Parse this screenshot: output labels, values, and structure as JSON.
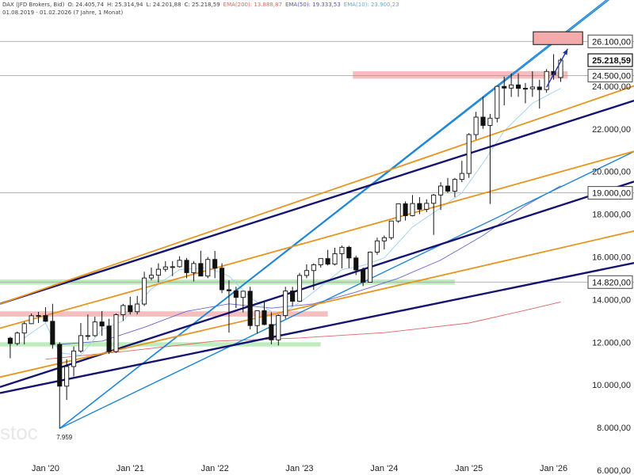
{
  "header": {
    "line1": {
      "instrument": "DAX (JFD Brokers, Bid)",
      "open": "O: 24.405,74",
      "high": "H: 25.314,94",
      "low": "L: 24.201,88",
      "close": "C: 25.218,59",
      "ema200": "EMA(200): 13.888,87",
      "ema50": "EMA(50): 19.333,53",
      "ema10": "EMA(10): 23.900,23"
    },
    "line2": "01.08.2019 - 01.02.2026 (7 Jahre, 1 Monat)"
  },
  "watermark": "stoc",
  "colors": {
    "candle": "#111111",
    "blue_lines": "#1f86d6",
    "navy_lines": "#141470",
    "orange_lines": "#e8941f",
    "green_zone": "#a8e6a8",
    "red_zone": "#f2aaaa",
    "ema200": "#e06666",
    "ema50": "#6666cc",
    "ema10": "#9ecff0",
    "arrow": "#2233aa"
  },
  "chart_data": {
    "type": "candlestick",
    "title": "DAX (JFD Brokers, Bid)",
    "x_ticks": [
      "Jan '20",
      "Jan '21",
      "Jan '22",
      "Jan '23",
      "Jan '24",
      "Jan '25",
      "Jan '26"
    ],
    "y_ticks": [
      "6.000,00",
      "8.000,00",
      "10.000,00",
      "12.000,00",
      "14.000,00",
      "16.000,00",
      "18.000,00",
      "20.000,00",
      "22.000,00",
      "24.000,00"
    ],
    "ylim": [
      6000,
      27000
    ],
    "xlim": [
      "2019-07",
      "2026-07"
    ],
    "marked_levels": [
      {
        "value": 26100,
        "label": "26.100,00"
      },
      {
        "value": 24500,
        "label": "24.500,00"
      },
      {
        "value": 19000,
        "label": "19.000,00"
      },
      {
        "value": 14820,
        "label": "14.820,00"
      }
    ],
    "last_price": {
      "value": 25218.59,
      "label": "25.218,59"
    },
    "low_annotation": {
      "date": "2020-03",
      "value": 7959,
      "label": "7.959"
    },
    "candles": [
      {
        "t": "2019-08",
        "o": 12190,
        "h": 12250,
        "l": 11250,
        "c": 11940
      },
      {
        "t": "2019-09",
        "o": 11940,
        "h": 12500,
        "l": 11850,
        "c": 12430
      },
      {
        "t": "2019-10",
        "o": 12430,
        "h": 12950,
        "l": 11900,
        "c": 12870
      },
      {
        "t": "2019-11",
        "o": 12870,
        "h": 13350,
        "l": 12850,
        "c": 13240
      },
      {
        "t": "2019-12",
        "o": 13240,
        "h": 13420,
        "l": 12900,
        "c": 13250
      },
      {
        "t": "2020-01",
        "o": 13250,
        "h": 13640,
        "l": 12950,
        "c": 12980
      },
      {
        "t": "2020-02",
        "o": 12980,
        "h": 13800,
        "l": 11700,
        "c": 11900
      },
      {
        "t": "2020-03",
        "o": 11900,
        "h": 12000,
        "l": 7959,
        "c": 9940
      },
      {
        "t": "2020-04",
        "o": 9940,
        "h": 11200,
        "l": 9300,
        "c": 10860
      },
      {
        "t": "2020-05",
        "o": 10860,
        "h": 11800,
        "l": 10400,
        "c": 11590
      },
      {
        "t": "2020-06",
        "o": 11590,
        "h": 12900,
        "l": 11500,
        "c": 12310
      },
      {
        "t": "2020-07",
        "o": 12310,
        "h": 13300,
        "l": 12100,
        "c": 12310
      },
      {
        "t": "2020-08",
        "o": 12310,
        "h": 13200,
        "l": 12250,
        "c": 12950
      },
      {
        "t": "2020-09",
        "o": 12950,
        "h": 13460,
        "l": 12300,
        "c": 12760
      },
      {
        "t": "2020-10",
        "o": 12760,
        "h": 13100,
        "l": 11450,
        "c": 11560
      },
      {
        "t": "2020-11",
        "o": 11560,
        "h": 13350,
        "l": 11500,
        "c": 13290
      },
      {
        "t": "2020-12",
        "o": 13290,
        "h": 13800,
        "l": 13000,
        "c": 13720
      },
      {
        "t": "2021-01",
        "o": 13720,
        "h": 14130,
        "l": 13300,
        "c": 13430
      },
      {
        "t": "2021-02",
        "o": 13430,
        "h": 14170,
        "l": 13300,
        "c": 13790
      },
      {
        "t": "2021-03",
        "o": 13790,
        "h": 15300,
        "l": 13700,
        "c": 15010
      },
      {
        "t": "2021-04",
        "o": 15010,
        "h": 15500,
        "l": 14900,
        "c": 15140
      },
      {
        "t": "2021-05",
        "o": 15140,
        "h": 15700,
        "l": 14800,
        "c": 15420
      },
      {
        "t": "2021-06",
        "o": 15420,
        "h": 15800,
        "l": 15300,
        "c": 15530
      },
      {
        "t": "2021-07",
        "o": 15530,
        "h": 15800,
        "l": 15100,
        "c": 15540
      },
      {
        "t": "2021-08",
        "o": 15540,
        "h": 16030,
        "l": 15500,
        "c": 15840
      },
      {
        "t": "2021-09",
        "o": 15840,
        "h": 15950,
        "l": 15000,
        "c": 15260
      },
      {
        "t": "2021-10",
        "o": 15260,
        "h": 15800,
        "l": 14850,
        "c": 15690
      },
      {
        "t": "2021-11",
        "o": 15690,
        "h": 16290,
        "l": 15100,
        "c": 15100
      },
      {
        "t": "2021-12",
        "o": 15100,
        "h": 16000,
        "l": 15000,
        "c": 15880
      },
      {
        "t": "2022-01",
        "o": 15880,
        "h": 16280,
        "l": 15000,
        "c": 15470
      },
      {
        "t": "2022-02",
        "o": 15470,
        "h": 15700,
        "l": 14300,
        "c": 14460
      },
      {
        "t": "2022-03",
        "o": 14460,
        "h": 14900,
        "l": 12450,
        "c": 14410
      },
      {
        "t": "2022-04",
        "o": 14410,
        "h": 14600,
        "l": 13600,
        "c": 14100
      },
      {
        "t": "2022-05",
        "o": 14100,
        "h": 14400,
        "l": 13400,
        "c": 14390
      },
      {
        "t": "2022-06",
        "o": 14390,
        "h": 14600,
        "l": 12600,
        "c": 12780
      },
      {
        "t": "2022-07",
        "o": 12780,
        "h": 13400,
        "l": 12400,
        "c": 13480
      },
      {
        "t": "2022-08",
        "o": 13480,
        "h": 13900,
        "l": 12800,
        "c": 12830
      },
      {
        "t": "2022-09",
        "o": 12830,
        "h": 13400,
        "l": 11900,
        "c": 12110
      },
      {
        "t": "2022-10",
        "o": 12110,
        "h": 13300,
        "l": 11850,
        "c": 13250
      },
      {
        "t": "2022-11",
        "o": 13250,
        "h": 14600,
        "l": 13100,
        "c": 14400
      },
      {
        "t": "2022-12",
        "o": 14400,
        "h": 14600,
        "l": 13700,
        "c": 13920
      },
      {
        "t": "2023-01",
        "o": 13920,
        "h": 15250,
        "l": 13900,
        "c": 15130
      },
      {
        "t": "2023-02",
        "o": 15130,
        "h": 15650,
        "l": 15000,
        "c": 15360
      },
      {
        "t": "2023-03",
        "o": 15360,
        "h": 15700,
        "l": 14450,
        "c": 15630
      },
      {
        "t": "2023-04",
        "o": 15630,
        "h": 15900,
        "l": 15500,
        "c": 15920
      },
      {
        "t": "2023-05",
        "o": 15920,
        "h": 16330,
        "l": 15600,
        "c": 15660
      },
      {
        "t": "2023-06",
        "o": 15660,
        "h": 16430,
        "l": 15600,
        "c": 16150
      },
      {
        "t": "2023-07",
        "o": 16150,
        "h": 16530,
        "l": 15460,
        "c": 16450
      },
      {
        "t": "2023-08",
        "o": 16450,
        "h": 16520,
        "l": 15470,
        "c": 15950
      },
      {
        "t": "2023-09",
        "o": 15950,
        "h": 16050,
        "l": 15150,
        "c": 15390
      },
      {
        "t": "2023-10",
        "o": 15390,
        "h": 15500,
        "l": 14630,
        "c": 14810
      },
      {
        "t": "2023-11",
        "o": 14810,
        "h": 16250,
        "l": 14800,
        "c": 16220
      },
      {
        "t": "2023-12",
        "o": 16220,
        "h": 16900,
        "l": 16100,
        "c": 16750
      },
      {
        "t": "2024-01",
        "o": 16750,
        "h": 17000,
        "l": 16350,
        "c": 16900
      },
      {
        "t": "2024-02",
        "o": 16900,
        "h": 17500,
        "l": 16800,
        "c": 17680
      },
      {
        "t": "2024-03",
        "o": 17680,
        "h": 18500,
        "l": 17600,
        "c": 18490
      },
      {
        "t": "2024-04",
        "o": 18490,
        "h": 18600,
        "l": 17700,
        "c": 17930
      },
      {
        "t": "2024-05",
        "o": 17930,
        "h": 18900,
        "l": 17900,
        "c": 18500
      },
      {
        "t": "2024-06",
        "o": 18500,
        "h": 18800,
        "l": 18000,
        "c": 18230
      },
      {
        "t": "2024-07",
        "o": 18230,
        "h": 18700,
        "l": 18100,
        "c": 18510
      },
      {
        "t": "2024-08",
        "o": 18510,
        "h": 18950,
        "l": 17030,
        "c": 18900
      },
      {
        "t": "2024-09",
        "o": 18900,
        "h": 19500,
        "l": 18200,
        "c": 19320
      },
      {
        "t": "2024-10",
        "o": 19320,
        "h": 19700,
        "l": 19000,
        "c": 19080
      },
      {
        "t": "2024-11",
        "o": 19080,
        "h": 19700,
        "l": 18800,
        "c": 19630
      },
      {
        "t": "2024-12",
        "o": 19630,
        "h": 20500,
        "l": 19500,
        "c": 19910
      },
      {
        "t": "2025-01",
        "o": 19910,
        "h": 21800,
        "l": 19700,
        "c": 21730
      },
      {
        "t": "2025-02",
        "o": 21730,
        "h": 22800,
        "l": 21500,
        "c": 22550
      },
      {
        "t": "2025-03",
        "o": 22550,
        "h": 23500,
        "l": 22000,
        "c": 22160
      },
      {
        "t": "2025-04",
        "o": 22160,
        "h": 22700,
        "l": 18480,
        "c": 22500
      },
      {
        "t": "2025-05",
        "o": 22500,
        "h": 24000,
        "l": 22300,
        "c": 23990
      },
      {
        "t": "2025-06",
        "o": 23990,
        "h": 24450,
        "l": 23100,
        "c": 23910
      },
      {
        "t": "2025-07",
        "o": 23910,
        "h": 24600,
        "l": 23500,
        "c": 24060
      },
      {
        "t": "2025-08",
        "o": 24060,
        "h": 24600,
        "l": 23500,
        "c": 23900
      },
      {
        "t": "2025-09",
        "o": 23900,
        "h": 24150,
        "l": 23200,
        "c": 23880
      },
      {
        "t": "2025-10",
        "o": 23880,
        "h": 24700,
        "l": 23500,
        "c": 23960
      },
      {
        "t": "2025-11",
        "o": 23960,
        "h": 24300,
        "l": 22950,
        "c": 23840
      },
      {
        "t": "2025-12",
        "o": 23840,
        "h": 24800,
        "l": 23700,
        "c": 24690
      },
      {
        "t": "2026-01",
        "o": 24690,
        "h": 25500,
        "l": 24300,
        "c": 24540
      },
      {
        "t": "2026-02",
        "o": 24405.74,
        "h": 25314.94,
        "l": 24201.88,
        "c": 25218.59
      }
    ],
    "ema10": [
      [
        "2019-10",
        12200
      ],
      [
        "2020-01",
        12900
      ],
      [
        "2020-03",
        11500
      ],
      [
        "2020-06",
        11400
      ],
      [
        "2020-09",
        12600
      ],
      [
        "2020-12",
        13000
      ],
      [
        "2021-04",
        14500
      ],
      [
        "2021-08",
        15400
      ],
      [
        "2021-12",
        15500
      ],
      [
        "2022-03",
        15100
      ],
      [
        "2022-06",
        14100
      ],
      [
        "2022-10",
        13200
      ],
      [
        "2023-02",
        14100
      ],
      [
        "2023-07",
        15400
      ],
      [
        "2023-10",
        15600
      ],
      [
        "2024-01",
        15950
      ],
      [
        "2024-05",
        17400
      ],
      [
        "2024-09",
        18300
      ],
      [
        "2024-12",
        19000
      ],
      [
        "2025-03",
        20400
      ],
      [
        "2025-06",
        21900
      ],
      [
        "2025-10",
        23200
      ],
      [
        "2026-02",
        23900
      ]
    ],
    "ema50": [
      [
        "2020-03",
        11900
      ],
      [
        "2020-09",
        12050
      ],
      [
        "2021-03",
        12700
      ],
      [
        "2021-09",
        13450
      ],
      [
        "2022-03",
        13800
      ],
      [
        "2022-09",
        13600
      ],
      [
        "2023-03",
        13800
      ],
      [
        "2023-09",
        14350
      ],
      [
        "2024-03",
        15000
      ],
      [
        "2024-09",
        15850
      ],
      [
        "2025-03",
        17000
      ],
      [
        "2025-09",
        18400
      ],
      [
        "2026-02",
        19333.53
      ]
    ],
    "ema200": [
      [
        "2020-01",
        11200
      ],
      [
        "2021-01",
        11600
      ],
      [
        "2022-01",
        12050
      ],
      [
        "2023-01",
        12200
      ],
      [
        "2024-01",
        12450
      ],
      [
        "2025-01",
        12900
      ],
      [
        "2025-09",
        13500
      ],
      [
        "2026-02",
        13888.87
      ]
    ],
    "zones": [
      {
        "color": "green",
        "from": "2019-07",
        "to": "2024-11",
        "low": 14700,
        "high": 14940
      },
      {
        "color": "green",
        "from": "2019-07",
        "to": "2023-04",
        "low": 11800,
        "high": 12000
      },
      {
        "color": "red",
        "from": "2019-07",
        "to": "2023-05",
        "low": 13200,
        "high": 13450
      },
      {
        "color": "red",
        "from": "2023-09",
        "to": "2026-03",
        "low": 24350,
        "high": 24700
      }
    ],
    "target_box": {
      "from": "2025-10",
      "to": "2026-05",
      "low": 25950,
      "high": 26550
    },
    "trendlines": [
      {
        "color": "blue",
        "p1": [
          "2020-03",
          7959
        ],
        "p2": [
          "2026-01",
          26100
        ]
      },
      {
        "color": "blue",
        "p1": [
          "2020-03",
          7959
        ],
        "p2": [
          "2026-04",
          26800
        ]
      },
      {
        "color": "blue",
        "p1": [
          "2020-03",
          7959
        ],
        "p2": [
          "2025-11",
          18800
        ]
      },
      {
        "color": "navy",
        "p1": [
          "2019-07",
          13850
        ],
        "p2": [
          "2026-07",
          22750
        ]
      },
      {
        "color": "navy",
        "p1": [
          "2019-07",
          9950
        ],
        "p2": [
          "2026-07",
          18950
        ]
      },
      {
        "color": "navy",
        "p1": [
          "2019-07",
          9650
        ],
        "p2": [
          "2026-07",
          15350
        ]
      },
      {
        "color": "orange",
        "p1": [
          "2019-07",
          13850
        ],
        "p2": [
          "2026-07",
          23400
        ]
      },
      {
        "color": "orange",
        "p1": [
          "2019-07",
          12700
        ],
        "p2": [
          "2026-07",
          20450
        ]
      },
      {
        "color": "orange",
        "p1": [
          "2019-07",
          10400
        ],
        "p2": [
          "2026-07",
          16800
        ]
      }
    ],
    "arrow": {
      "from": [
        "2025-12",
        23950
      ],
      "to": [
        "2026-03",
        25750
      ]
    }
  }
}
